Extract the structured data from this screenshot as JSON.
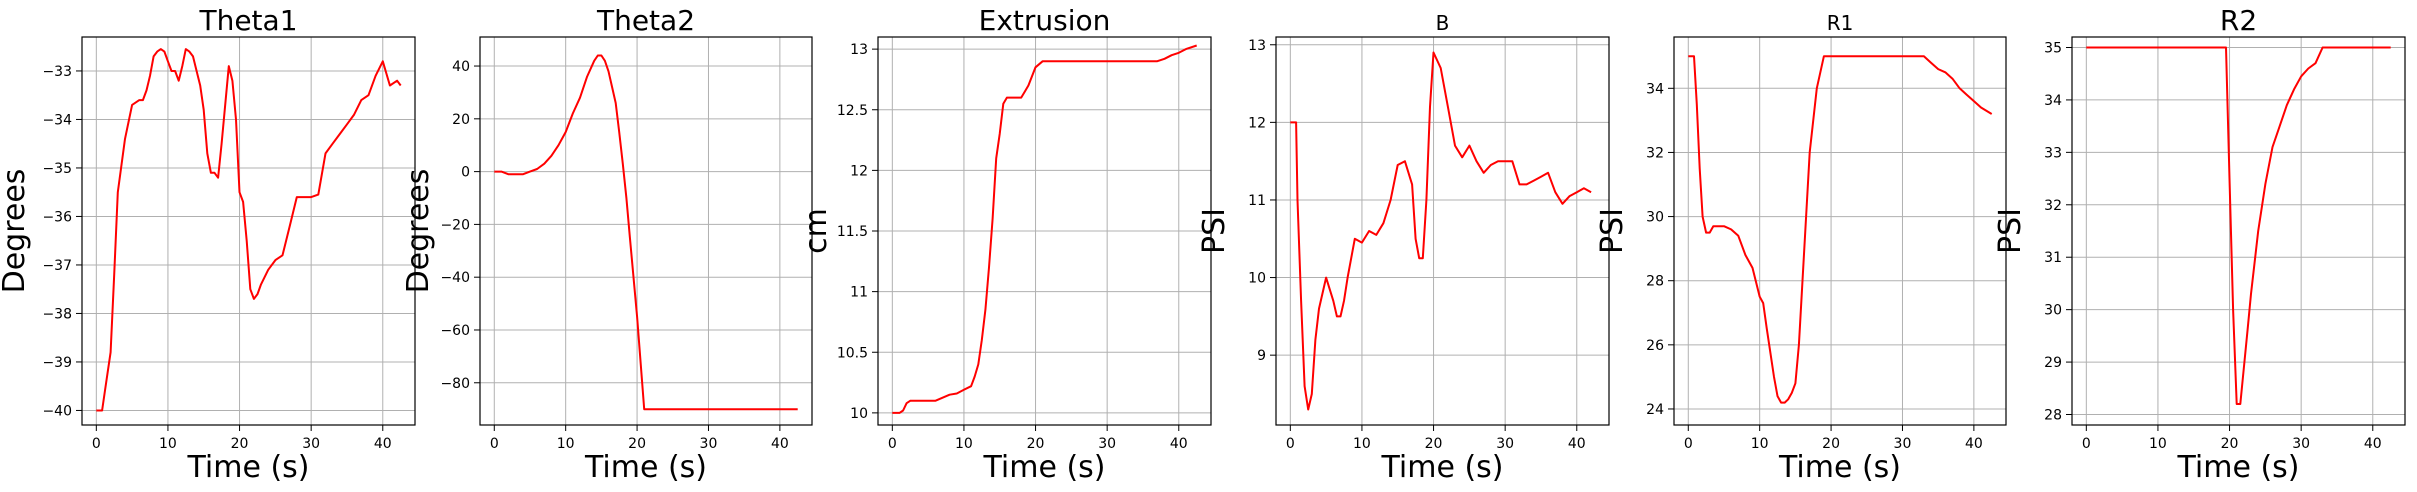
{
  "chart_data": [
    {
      "type": "line",
      "title": "Theta1",
      "xlabel": "Time (s)",
      "ylabel": "Degrees",
      "xlim": [
        -2,
        44.5
      ],
      "ylim": [
        -40.3,
        -32.3
      ],
      "xticks": [
        0,
        10,
        20,
        30,
        40
      ],
      "yticks": [
        -40,
        -39,
        -38,
        -37,
        -36,
        -35,
        -34,
        -33
      ],
      "grid": true,
      "line_color": "#ff0000",
      "series": [
        {
          "x": [
            0,
            0.8,
            1.2,
            2,
            2.5,
            3,
            4,
            5,
            6,
            6.5,
            7,
            7.5,
            8,
            8.5,
            9,
            9.5,
            10,
            10.5,
            11,
            11.5,
            12,
            12.5,
            13,
            13.5,
            14,
            14.5,
            15,
            15.5,
            16,
            16.5,
            17,
            17.5,
            18,
            18.5,
            19,
            19.5,
            20,
            20.5,
            21,
            21.5,
            22,
            22.5,
            23,
            24,
            25,
            26,
            27,
            28,
            29,
            30,
            31,
            32,
            33,
            34,
            35,
            36,
            37,
            38,
            39,
            40,
            41,
            42,
            42.5
          ],
          "y": [
            -40,
            -40,
            -39.6,
            -38.8,
            -37.2,
            -35.5,
            -34.4,
            -33.7,
            -33.6,
            -33.6,
            -33.4,
            -33.1,
            -32.7,
            -32.6,
            -32.55,
            -32.6,
            -32.8,
            -33,
            -33,
            -33.2,
            -32.9,
            -32.55,
            -32.6,
            -32.7,
            -33,
            -33.3,
            -33.8,
            -34.7,
            -35.1,
            -35.1,
            -35.2,
            -34.5,
            -33.7,
            -32.9,
            -33.2,
            -34,
            -35.5,
            -35.7,
            -36.5,
            -37.5,
            -37.7,
            -37.6,
            -37.4,
            -37.1,
            -36.9,
            -36.8,
            -36.2,
            -35.6,
            -35.6,
            -35.6,
            -35.55,
            -34.7,
            -34.5,
            -34.3,
            -34.1,
            -33.9,
            -33.6,
            -33.5,
            -33.1,
            -32.8,
            -33.3,
            -33.2,
            -33.3
          ]
        }
      ]
    },
    {
      "type": "line",
      "title": "Theta2",
      "xlabel": "Time (s)",
      "ylabel": "Degrees",
      "xlim": [
        -2,
        44.5
      ],
      "ylim": [
        -96,
        51
      ],
      "xticks": [
        0,
        10,
        20,
        30,
        40
      ],
      "yticks": [
        -80,
        -60,
        -40,
        -20,
        0,
        20,
        40
      ],
      "grid": true,
      "line_color": "#ff0000",
      "series": [
        {
          "x": [
            0,
            1,
            2,
            3,
            4,
            5,
            6,
            7,
            8,
            9,
            10,
            11,
            12,
            13,
            14,
            14.5,
            15,
            15.5,
            16,
            16.5,
            17,
            17.5,
            18,
            18.5,
            19,
            20,
            21,
            22,
            25,
            30,
            35,
            40,
            42.5
          ],
          "y": [
            0,
            0,
            -1,
            -1,
            -1,
            0,
            1,
            3,
            6,
            10,
            15,
            22,
            28,
            36,
            42,
            44,
            44,
            42,
            38,
            32,
            26,
            15,
            3,
            -10,
            -25,
            -55,
            -90,
            -90,
            -90,
            -90,
            -90,
            -90,
            -90
          ]
        }
      ]
    },
    {
      "type": "line",
      "title": "Extrusion",
      "xlabel": "Time (s)",
      "ylabel": "cm",
      "xlim": [
        -2,
        44.5
      ],
      "ylim": [
        9.9,
        13.1
      ],
      "xticks": [
        0,
        10,
        20,
        30,
        40
      ],
      "yticks": [
        10.0,
        10.5,
        11.0,
        11.5,
        12.0,
        12.5,
        13.0
      ],
      "grid": true,
      "line_color": "#ff0000",
      "series": [
        {
          "x": [
            0,
            1,
            1.5,
            2,
            2.5,
            3,
            4,
            6,
            8,
            9,
            10,
            11,
            11.5,
            12,
            12.5,
            13,
            13.5,
            14,
            14.5,
            15,
            15.5,
            16,
            16.5,
            17,
            17.5,
            18,
            18.5,
            19,
            20,
            21,
            22,
            23,
            24,
            25,
            30,
            35,
            37,
            38,
            39,
            40,
            41,
            42.5
          ],
          "y": [
            10,
            10,
            10.02,
            10.08,
            10.1,
            10.1,
            10.1,
            10.1,
            10.15,
            10.16,
            10.19,
            10.22,
            10.3,
            10.4,
            10.6,
            10.85,
            11.2,
            11.6,
            12.1,
            12.3,
            12.55,
            12.6,
            12.6,
            12.6,
            12.6,
            12.6,
            12.65,
            12.7,
            12.85,
            12.9,
            12.9,
            12.9,
            12.9,
            12.9,
            12.9,
            12.9,
            12.9,
            12.92,
            12.95,
            12.97,
            13,
            13.03
          ]
        }
      ]
    },
    {
      "type": "line",
      "title": "B",
      "xlabel": "Time (s)",
      "ylabel": "PSI",
      "xlim": [
        -2,
        44.5
      ],
      "ylim": [
        8.1,
        13.1
      ],
      "xticks": [
        0,
        10,
        20,
        30,
        40
      ],
      "yticks": [
        9,
        10,
        11,
        12,
        13
      ],
      "grid": true,
      "line_color": "#ff0000",
      "series": [
        {
          "x": [
            0,
            0.8,
            1,
            1.5,
            2,
            2.5,
            3,
            3.5,
            4,
            5,
            6,
            6.5,
            7,
            7.5,
            8,
            9,
            10,
            11,
            12,
            13,
            14,
            15,
            16,
            17,
            17.5,
            18,
            18.5,
            19,
            19.5,
            20,
            21,
            22,
            23,
            24,
            25,
            26,
            27,
            28,
            29,
            30,
            31,
            32,
            33,
            34,
            35,
            36,
            37,
            38,
            39,
            40,
            41,
            42
          ],
          "y": [
            12,
            12,
            11,
            9.7,
            8.6,
            8.3,
            8.5,
            9.2,
            9.6,
            10,
            9.7,
            9.5,
            9.5,
            9.7,
            10,
            10.5,
            10.45,
            10.6,
            10.55,
            10.7,
            11,
            11.45,
            11.5,
            11.2,
            10.5,
            10.25,
            10.25,
            11,
            12.2,
            12.9,
            12.7,
            12.2,
            11.7,
            11.55,
            11.7,
            11.5,
            11.35,
            11.45,
            11.5,
            11.5,
            11.5,
            11.2,
            11.2,
            11.25,
            11.3,
            11.35,
            11.1,
            10.95,
            11.05,
            11.1,
            11.15,
            11.1
          ]
        }
      ]
    },
    {
      "type": "line",
      "title": "R1",
      "xlabel": "Time (s)",
      "ylabel": "PSI",
      "xlim": [
        -2,
        44.5
      ],
      "ylim": [
        23.5,
        35.6
      ],
      "xticks": [
        0,
        10,
        20,
        30,
        40
      ],
      "yticks": [
        24,
        26,
        28,
        30,
        32,
        34
      ],
      "grid": true,
      "line_color": "#ff0000",
      "series": [
        {
          "x": [
            0,
            0.8,
            1.2,
            1.6,
            2,
            2.5,
            3,
            3.5,
            4,
            5,
            6,
            7,
            8,
            9,
            10,
            10.5,
            11,
            12,
            12.5,
            13,
            13.5,
            14,
            14.5,
            15,
            15.5,
            16,
            16.5,
            17,
            18,
            19,
            20,
            22,
            25,
            30,
            32,
            33,
            34,
            35,
            36,
            37,
            38,
            39,
            40,
            41,
            42.5
          ],
          "y": [
            35,
            35,
            33.5,
            31.5,
            30,
            29.5,
            29.5,
            29.7,
            29.7,
            29.7,
            29.6,
            29.4,
            28.8,
            28.4,
            27.5,
            27.3,
            26.5,
            25,
            24.4,
            24.2,
            24.2,
            24.3,
            24.5,
            24.8,
            26,
            28,
            30,
            32,
            34,
            35,
            35,
            35,
            35,
            35,
            35,
            35,
            34.8,
            34.6,
            34.5,
            34.3,
            34,
            33.8,
            33.6,
            33.4,
            33.2
          ]
        }
      ]
    },
    {
      "type": "line",
      "title": "R2",
      "xlabel": "Time (s)",
      "ylabel": "PSI",
      "xlim": [
        -2,
        44.5
      ],
      "ylim": [
        27.8,
        35.2
      ],
      "xticks": [
        0,
        10,
        20,
        30,
        40
      ],
      "yticks": [
        28,
        29,
        30,
        31,
        32,
        33,
        34,
        35
      ],
      "grid": true,
      "line_color": "#ff0000",
      "series": [
        {
          "x": [
            0,
            10,
            19.5,
            20,
            20.5,
            21,
            21.5,
            22,
            22.5,
            23,
            23.5,
            24,
            25,
            26,
            27,
            28,
            29,
            30,
            31,
            32,
            33,
            35,
            40,
            42.5
          ],
          "y": [
            35,
            35,
            35,
            32.5,
            30,
            28.2,
            28.2,
            28.9,
            29.6,
            30.3,
            30.9,
            31.5,
            32.4,
            33.1,
            33.5,
            33.9,
            34.2,
            34.45,
            34.6,
            34.7,
            35,
            35,
            35,
            35
          ]
        }
      ]
    }
  ]
}
